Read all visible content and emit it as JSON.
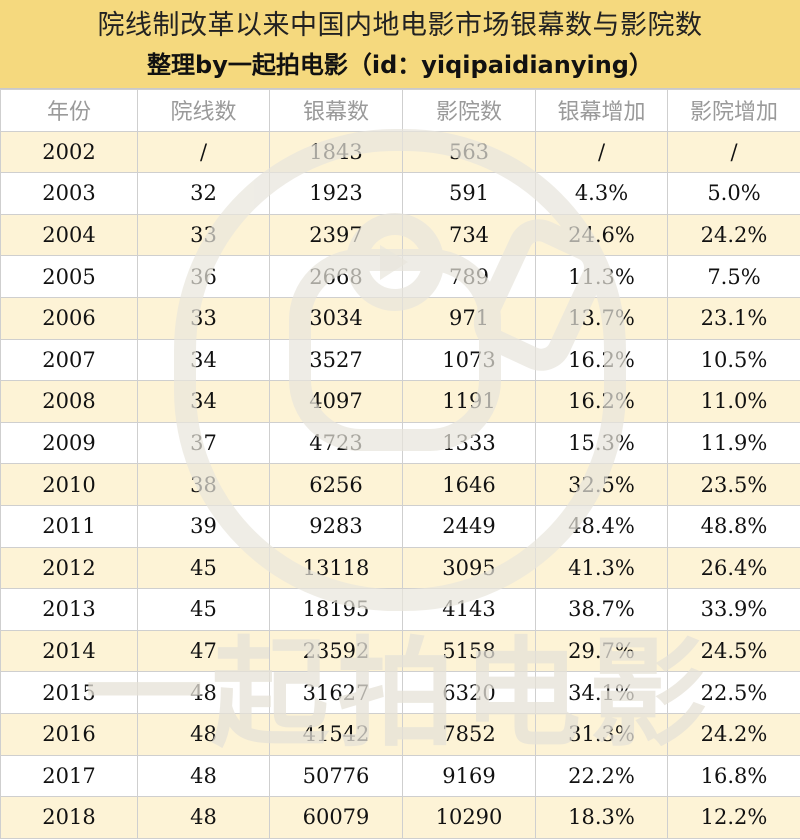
{
  "header": {
    "title": "院线制改革以来中国内地电影市场银幕数与影院数",
    "subtitle": "整理by一起拍电影（id：yiqipaidianying）"
  },
  "table": {
    "columns": [
      "年份",
      "院线数",
      "银幕数",
      "影院数",
      "银幕增加",
      "影院增加"
    ],
    "rows": [
      [
        "2002",
        "/",
        "1843",
        "563",
        "/",
        "/"
      ],
      [
        "2003",
        "32",
        "1923",
        "591",
        "4.3%",
        "5.0%"
      ],
      [
        "2004",
        "33",
        "2397",
        "734",
        "24.6%",
        "24.2%"
      ],
      [
        "2005",
        "36",
        "2668",
        "789",
        "11.3%",
        "7.5%"
      ],
      [
        "2006",
        "33",
        "3034",
        "971",
        "13.7%",
        "23.1%"
      ],
      [
        "2007",
        "34",
        "3527",
        "1073",
        "16.2%",
        "10.5%"
      ],
      [
        "2008",
        "34",
        "4097",
        "1191",
        "16.2%",
        "11.0%"
      ],
      [
        "2009",
        "37",
        "4723",
        "1333",
        "15.3%",
        "11.9%"
      ],
      [
        "2010",
        "38",
        "6256",
        "1646",
        "32.5%",
        "23.5%"
      ],
      [
        "2011",
        "39",
        "9283",
        "2449",
        "48.4%",
        "48.8%"
      ],
      [
        "2012",
        "45",
        "13118",
        "3095",
        "41.3%",
        "26.4%"
      ],
      [
        "2013",
        "45",
        "18195",
        "4143",
        "38.7%",
        "33.9%"
      ],
      [
        "2014",
        "47",
        "23592",
        "5158",
        "29.7%",
        "24.5%"
      ],
      [
        "2015",
        "48",
        "31627",
        "6320",
        "34.1%",
        "22.5%"
      ],
      [
        "2016",
        "48",
        "41542",
        "7852",
        "31.3%",
        "24.2%"
      ],
      [
        "2017",
        "48",
        "50776",
        "9169",
        "22.2%",
        "16.8%"
      ],
      [
        "2018",
        "48",
        "60079",
        "10290",
        "18.3%",
        "12.2%"
      ]
    ]
  },
  "watermark": {
    "icon": "camera-play-logo-watermark",
    "text": "一起拍电影",
    "color": "#e9e6de"
  }
}
